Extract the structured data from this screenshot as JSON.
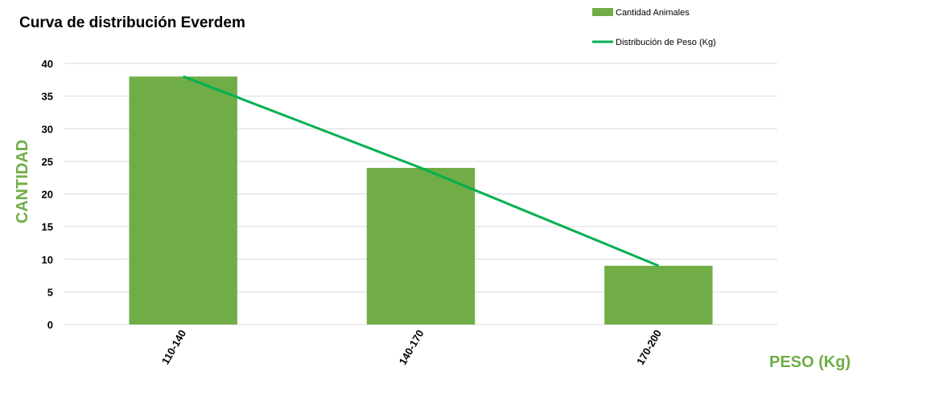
{
  "chart_data": {
    "type": "bar",
    "title": "Curva de distribución Everdem",
    "xlabel": "PESO (Kg)",
    "ylabel": "CANTIDAD",
    "categories": [
      "110-140",
      "140-170",
      "170-200"
    ],
    "series": [
      {
        "name": "Cantidad Animales",
        "kind": "bar",
        "color": "#70ad47",
        "values": [
          38,
          24,
          9
        ]
      },
      {
        "name": "Distribución de Peso (Kg)",
        "kind": "line",
        "color": "#00b050",
        "values": [
          38,
          24,
          9
        ]
      }
    ],
    "ylim": [
      0,
      40
    ],
    "yticks": [
      0,
      5,
      10,
      15,
      20,
      25,
      30,
      35,
      40
    ],
    "grid": true,
    "legend": "top-right",
    "axis_title_color": "#70ad47",
    "grid_color": "#d9d9d9"
  }
}
